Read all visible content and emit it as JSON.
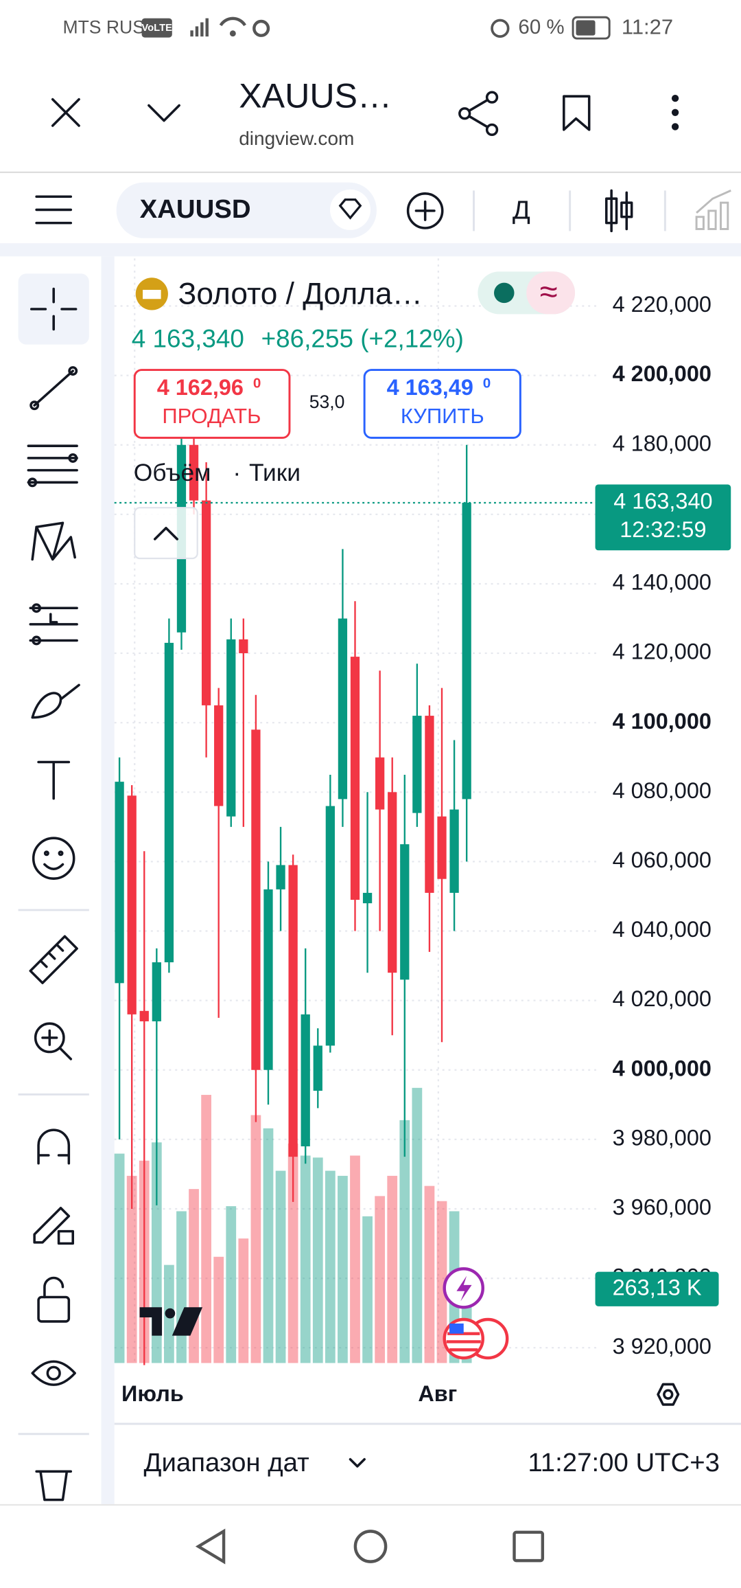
{
  "status": {
    "carrier": "MTS RUS",
    "network": "VoLTE",
    "battery": "60 %",
    "time": "11:27"
  },
  "browser": {
    "title": "XAUUS…",
    "url": "dingview.com"
  },
  "toolbar": {
    "symbol": "XAUUSD",
    "interval": "Д"
  },
  "quote": {
    "name": "Золото / Долла…",
    "price": "4 163,340",
    "change": "+86,255 (+2,12%)",
    "sell_price": "4 162,96",
    "sell_price_tail": "0",
    "sell_label": "ПРОДАТЬ",
    "spread": "53,0",
    "buy_price": "4 163,49",
    "buy_price_tail": "0",
    "buy_label": "КУПИТЬ",
    "indicator": "Объём",
    "indicator_param": "Тики"
  },
  "chart_data": {
    "type": "candlestick",
    "up_color": "#089981",
    "down_color": "#f23645",
    "ylim": [
      3915.6,
      4233.7
    ],
    "yticks": [
      {
        "value": 3920,
        "label": "3 920,000"
      },
      {
        "value": 3940,
        "label": "3 940,000"
      },
      {
        "value": 3960,
        "label": "3 960,000"
      },
      {
        "value": 3980,
        "label": "3 980,000"
      },
      {
        "value": 4000,
        "label": "4 000,000",
        "bold": true
      },
      {
        "value": 4020,
        "label": "4 020,000"
      },
      {
        "value": 4040,
        "label": "4 040,000"
      },
      {
        "value": 4060,
        "label": "4 060,000"
      },
      {
        "value": 4080,
        "label": "4 080,000"
      },
      {
        "value": 4100,
        "label": "4 100,000",
        "bold": true
      },
      {
        "value": 4120,
        "label": "4 120,000"
      },
      {
        "value": 4140,
        "label": "4 140,000"
      },
      {
        "value": 4160,
        "label": "4 160,000"
      },
      {
        "value": 4180,
        "label": "4 180,000"
      },
      {
        "value": 4200,
        "label": "4 200,000",
        "bold": true
      },
      {
        "value": 4220,
        "label": "4 220,000"
      }
    ],
    "x_labels": [
      "Июль",
      "Авг"
    ],
    "last_price_label": "4 163,340",
    "countdown": "12:32:59",
    "candles": [
      {
        "open": 4025,
        "high": 4090,
        "low": 3980,
        "close": 4083
      },
      {
        "open": 4079,
        "high": 4082,
        "low": 3960,
        "close": 4016
      },
      {
        "open": 4017,
        "high": 4063,
        "low": 3915,
        "close": 4014
      },
      {
        "open": 4014,
        "high": 4035,
        "low": 3961,
        "close": 4031
      },
      {
        "open": 4031,
        "high": 4130,
        "low": 4028,
        "close": 4123
      },
      {
        "open": 4126,
        "high": 4183,
        "low": 4121,
        "close": 4180
      },
      {
        "open": 4180,
        "high": 4183,
        "low": 4160,
        "close": 4164
      },
      {
        "open": 4164,
        "high": 4175,
        "low": 4090,
        "close": 4105
      },
      {
        "open": 4105,
        "high": 4110,
        "low": 4015,
        "close": 4076
      },
      {
        "open": 4073,
        "high": 4130,
        "low": 4070,
        "close": 4124
      },
      {
        "open": 4124,
        "high": 4130,
        "low": 4070,
        "close": 4120
      },
      {
        "open": 4098,
        "high": 4108,
        "low": 3985,
        "close": 4000
      },
      {
        "open": 4000,
        "high": 4060,
        "low": 3990,
        "close": 4052
      },
      {
        "open": 4052,
        "high": 4070,
        "low": 4040,
        "close": 4059
      },
      {
        "open": 4059,
        "high": 4062,
        "low": 3962,
        "close": 3975
      },
      {
        "open": 3978,
        "high": 4035,
        "low": 3973,
        "close": 4016
      },
      {
        "open": 3994,
        "high": 4012,
        "low": 3989,
        "close": 4007
      },
      {
        "open": 4007,
        "high": 4085,
        "low": 4005,
        "close": 4076
      },
      {
        "open": 4078,
        "high": 4150,
        "low": 4070,
        "close": 4130
      },
      {
        "open": 4119,
        "high": 4135,
        "low": 4040,
        "close": 4049
      },
      {
        "open": 4048,
        "high": 4080,
        "low": 4028,
        "close": 4051
      },
      {
        "open": 4090,
        "high": 4115,
        "low": 4040,
        "close": 4075
      },
      {
        "open": 4080,
        "high": 4090,
        "low": 4010,
        "close": 4028
      },
      {
        "open": 4026,
        "high": 4085,
        "low": 3975,
        "close": 4065
      },
      {
        "open": 4074,
        "high": 4117,
        "low": 4070,
        "close": 4102
      },
      {
        "open": 4102,
        "high": 4105,
        "low": 4034,
        "close": 4051
      },
      {
        "open": 4073,
        "high": 4110,
        "low": 4008,
        "close": 4055
      },
      {
        "open": 4051,
        "high": 4095,
        "low": 4040,
        "close": 4075
      },
      {
        "open": 4078,
        "high": 4180,
        "low": 4060,
        "close": 4163.34
      }
    ],
    "volume_lim": [
      0,
      3930
    ],
    "volumes": [
      745,
      666,
      720,
      785,
      349,
      540,
      619,
      954,
      378,
      558,
      443,
      882,
      835,
      684,
      781,
      738,
      731,
      684,
      666,
      738,
      522,
      594,
      666,
      864,
      979,
      630,
      576,
      540,
      263.13
    ],
    "volume_value_labels": [
      null,
      null,
      null,
      null,
      null,
      null,
      null,
      null,
      null,
      null,
      null,
      null,
      null,
      null,
      null,
      null,
      null,
      null,
      null,
      null,
      null,
      null,
      null,
      null,
      null,
      null,
      null,
      null,
      "263,13 K"
    ]
  },
  "footer": {
    "range": "Диапазон дат",
    "clock": "11:27:00 UTC+3"
  }
}
